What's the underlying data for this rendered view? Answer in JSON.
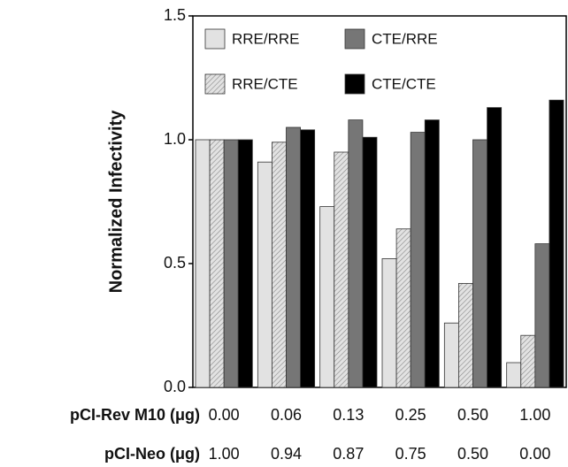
{
  "chart_data": {
    "type": "bar",
    "ylabel": "Normalized Infectivity",
    "xlabel": "pCI-Rev M10 (μg)",
    "categories": [
      "0.00",
      "0.06",
      "0.13",
      "0.25",
      "0.50",
      "1.00"
    ],
    "secondary_x": {
      "label": "pCI-Neo (μg)",
      "categories": [
        "1.00",
        "0.94",
        "0.87",
        "0.75",
        "0.50",
        "0.00"
      ]
    },
    "series": [
      {
        "name": "RRE/RRE",
        "color": "#e2e2e2",
        "hatch": false,
        "values": [
          1.0,
          0.91,
          0.73,
          0.52,
          0.26,
          0.1
        ]
      },
      {
        "name": "RRE/CTE",
        "color": "#e2e2e2",
        "hatch": true,
        "values": [
          1.0,
          0.99,
          0.95,
          0.64,
          0.42,
          0.21
        ]
      },
      {
        "name": "CTE/RRE",
        "color": "#767676",
        "hatch": false,
        "values": [
          1.0,
          1.05,
          1.08,
          1.03,
          1.0,
          0.58
        ]
      },
      {
        "name": "CTE/CTE",
        "color": "#000000",
        "hatch": false,
        "values": [
          1.0,
          1.04,
          1.01,
          1.08,
          1.13,
          1.16
        ]
      }
    ],
    "ylim": [
      0,
      1.5
    ],
    "yticks": [
      {
        "value": 0,
        "label": "0.0"
      },
      0.5,
      {
        "value": 1,
        "label": "1.0"
      },
      1.5
    ],
    "grid": false
  }
}
